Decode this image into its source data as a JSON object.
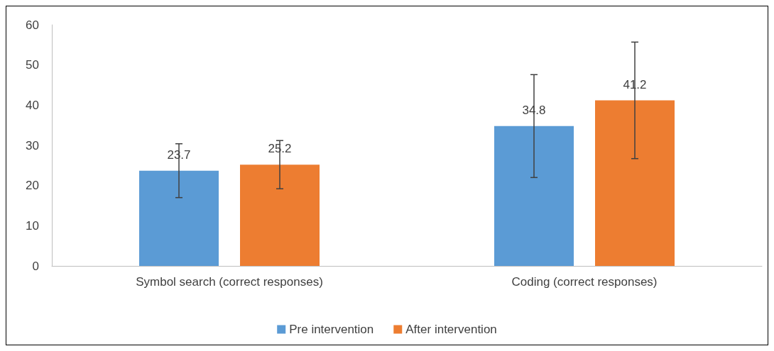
{
  "chart_data": {
    "type": "bar",
    "categories": [
      "Symbol search (correct responses)",
      "Coding (correct responses)"
    ],
    "series": [
      {
        "name": "Pre intervention",
        "color": "#5b9bd5",
        "values": [
          23.7,
          34.8
        ],
        "errors": [
          6.7,
          12.8
        ]
      },
      {
        "name": "After intervention",
        "color": "#ed7d31",
        "values": [
          25.2,
          41.2
        ],
        "errors": [
          6.0,
          14.5
        ]
      }
    ],
    "ylim": [
      0,
      60
    ],
    "yticks": [
      0,
      10,
      20,
      30,
      40,
      50,
      60
    ],
    "grid": false,
    "legend": "bottom",
    "data_labels": true
  }
}
